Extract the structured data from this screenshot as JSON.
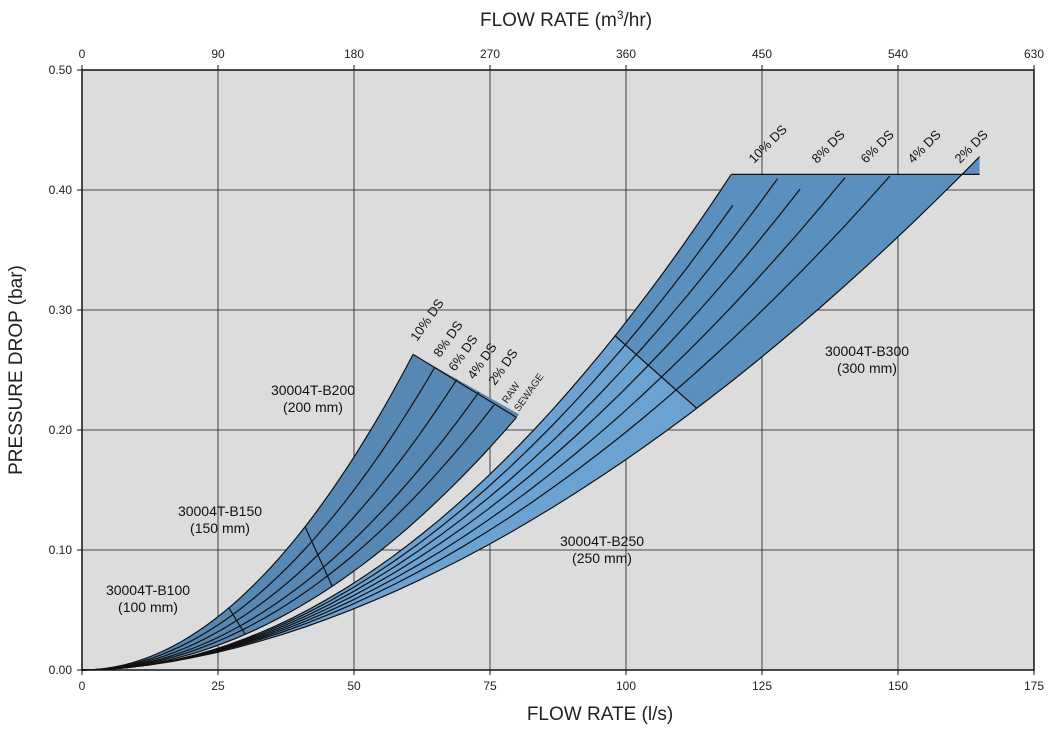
{
  "chart_data": {
    "type": "area",
    "xlabel_bottom": "FLOW RATE (l/s)",
    "xlabel_top_prefix": "FLOW RATE (m",
    "xlabel_top_sup": "3",
    "xlabel_top_suffix": "/hr)",
    "ylabel": "PRESSURE DROP (bar)",
    "xlim": [
      0,
      175
    ],
    "ylim": [
      0,
      0.5
    ],
    "x_ticks_bottom": [
      "0",
      "25",
      "50",
      "75",
      "100",
      "125",
      "150",
      "175"
    ],
    "x_ticks_top": [
      "0",
      "90",
      "180",
      "270",
      "360",
      "450",
      "540",
      "630"
    ],
    "y_ticks": [
      "0.00",
      "0.10",
      "0.20",
      "0.30",
      "0.40",
      "0.50"
    ],
    "grid": true,
    "ds_curves": [
      {
        "name": "10% DS",
        "k": 7.1e-05
      },
      {
        "name": "8% DS",
        "k": 6e-05
      },
      {
        "name": "6% DS",
        "k": 5.1e-05
      },
      {
        "name": "4% DS",
        "k": 4.35e-05
      },
      {
        "name": "2% DS",
        "k": 3.85e-05
      },
      {
        "name": "RAW SEWAGE",
        "k": 3.3e-05
      }
    ],
    "zones": [
      {
        "name": "30004T-B100",
        "size": "(100 mm)",
        "x_range": [
          0,
          29
        ]
      },
      {
        "name": "30004T-B150",
        "size": "(150 mm)",
        "x_range": [
          27,
          46
        ]
      },
      {
        "name": "30004T-B200",
        "size": "(200 mm)",
        "x_range": [
          41,
          74
        ]
      },
      {
        "name": "30004T-B250",
        "size": "(250 mm)",
        "x_range": [
          0,
          113
        ]
      },
      {
        "name": "30004T-B300",
        "size": "(300 mm)",
        "x_range": [
          98,
          165
        ]
      }
    ],
    "small_series": [
      "10% DS",
      "8% DS",
      "6% DS",
      "4% DS",
      "2% DS",
      "RAW SEWAGE"
    ],
    "b200_top_pressure": 0.263,
    "large_series": [
      "10% DS",
      "8% DS",
      "6% DS",
      "4% DS",
      "2% DS"
    ],
    "b300_top_pressure": 0.413,
    "raw_label_line1": "RAW",
    "raw_label_line2": "SEWAGE",
    "colors": {
      "plot_bg": "#dcdcdc",
      "small_fill": "#5788b4",
      "b250_fill": "#6ba2d2",
      "b300_fill": "#5b8fbd",
      "line": "#111111"
    }
  }
}
